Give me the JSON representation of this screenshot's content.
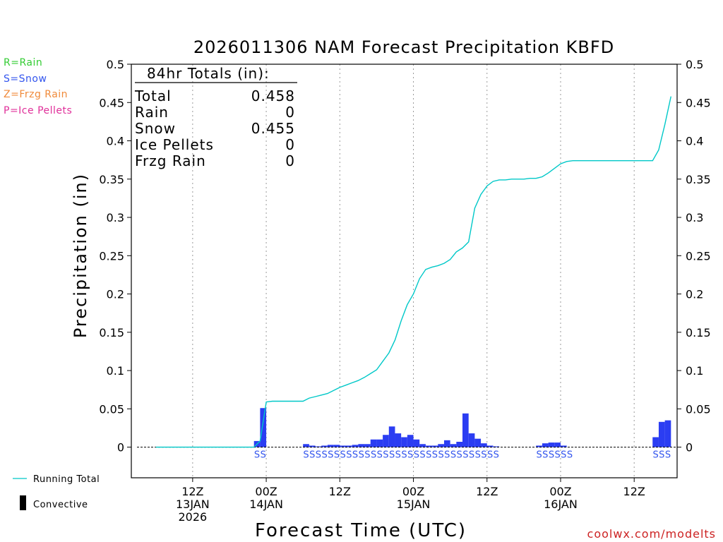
{
  "chart_data": {
    "type": "bar",
    "title": "2026011306 NAM Forecast Precipitation KBFD",
    "ylabel": "Precipitation (in)",
    "xlabel": "Forecast Time (UTC)",
    "ylim": [
      -0.04,
      0.5
    ],
    "yticks": [
      0,
      0.05,
      0.1,
      0.15,
      0.2,
      0.25,
      0.3,
      0.35,
      0.4,
      0.45,
      0.5
    ],
    "ytick_labels": [
      "0",
      "0.05",
      "0.1",
      "0.15",
      "0.2",
      "0.25",
      "0.3",
      "0.35",
      "0.4",
      "0.45",
      "0.5"
    ],
    "xlim_hours": [
      -4,
      85
    ],
    "xticks": [
      {
        "hour": 6,
        "label1": "12Z",
        "label2": "13JAN",
        "label3": "2026"
      },
      {
        "hour": 18,
        "label1": "00Z",
        "label2": "14JAN",
        "label3": ""
      },
      {
        "hour": 30,
        "label1": "12Z",
        "label2": "",
        "label3": ""
      },
      {
        "hour": 42,
        "label1": "00Z",
        "label2": "15JAN",
        "label3": ""
      },
      {
        "hour": 54,
        "label1": "12Z",
        "label2": "",
        "label3": ""
      },
      {
        "hour": 66,
        "label1": "00Z",
        "label2": "16JAN",
        "label3": ""
      },
      {
        "hour": 78,
        "label1": "12Z",
        "label2": "",
        "label3": ""
      }
    ],
    "precip_type_legend": [
      {
        "label": "R=Rain",
        "color": "#33cc33"
      },
      {
        "label": "S=Snow",
        "color": "#3355ee"
      },
      {
        "label": "Z=Frzg Rain",
        "color": "#f08a3a"
      },
      {
        "label": "P=Ice Pellets",
        "color": "#e0309a"
      }
    ],
    "series_legend": {
      "running_total": "Running Total",
      "convective": "Convective"
    },
    "totals_box": {
      "header": "84hr Totals (in):",
      "rows": [
        {
          "name": "Total",
          "value": "0.458"
        },
        {
          "name": "Rain",
          "value": "0"
        },
        {
          "name": "Snow",
          "value": "0.455"
        },
        {
          "name": "Ice Pellets",
          "value": "0"
        },
        {
          "name": "Frzg Rain",
          "value": "0"
        }
      ]
    },
    "hourly_precip": {
      "hours": [
        17,
        18,
        25,
        26,
        27,
        28,
        29,
        30,
        31,
        32,
        33,
        34,
        35,
        36,
        37,
        38,
        39,
        40,
        41,
        42,
        43,
        44,
        45,
        46,
        47,
        48,
        49,
        50,
        51,
        52,
        53,
        54,
        55,
        56,
        63,
        64,
        65,
        66,
        67,
        82,
        83,
        84
      ],
      "values": [
        0.008,
        0.051,
        0.004,
        0.002,
        0.001,
        0.002,
        0.003,
        0.003,
        0.002,
        0.002,
        0.003,
        0.004,
        0.004,
        0.01,
        0.01,
        0.016,
        0.027,
        0.018,
        0.013,
        0.016,
        0.01,
        0.004,
        0.002,
        0.002,
        0.004,
        0.009,
        0.004,
        0.007,
        0.044,
        0.018,
        0.011,
        0.005,
        0.002,
        0.001,
        0.002,
        0.005,
        0.006,
        0.006,
        0.002,
        0.013,
        0.033,
        0.035
      ],
      "color": "#2b3df2"
    },
    "running_total": {
      "hours": [
        0,
        16,
        17,
        18,
        19,
        20,
        21,
        22,
        23,
        24,
        25,
        26,
        27,
        28,
        29,
        30,
        31,
        32,
        33,
        34,
        35,
        36,
        37,
        38,
        39,
        40,
        41,
        42,
        43,
        44,
        45,
        46,
        47,
        48,
        49,
        50,
        51,
        52,
        53,
        54,
        55,
        56,
        57,
        58,
        59,
        60,
        61,
        62,
        63,
        64,
        65,
        66,
        67,
        68,
        69,
        70,
        71,
        72,
        73,
        74,
        75,
        76,
        77,
        78,
        79,
        80,
        81,
        82,
        83,
        84
      ],
      "values": [
        0,
        0,
        0.008,
        0.059,
        0.06,
        0.06,
        0.06,
        0.06,
        0.06,
        0.06,
        0.064,
        0.066,
        0.068,
        0.07,
        0.074,
        0.078,
        0.081,
        0.084,
        0.087,
        0.091,
        0.096,
        0.101,
        0.112,
        0.123,
        0.14,
        0.165,
        0.186,
        0.2,
        0.22,
        0.232,
        0.235,
        0.237,
        0.24,
        0.245,
        0.255,
        0.26,
        0.268,
        0.312,
        0.33,
        0.341,
        0.347,
        0.349,
        0.349,
        0.35,
        0.35,
        0.35,
        0.351,
        0.351,
        0.353,
        0.358,
        0.364,
        0.37,
        0.373,
        0.374,
        0.374,
        0.374,
        0.374,
        0.374,
        0.374,
        0.374,
        0.374,
        0.374,
        0.374,
        0.374,
        0.374,
        0.374,
        0.374,
        0.388,
        0.421,
        0.458
      ],
      "color": "#00c8c8"
    },
    "ptype_markers": [
      {
        "hour": 17,
        "text": "S"
      },
      {
        "hour": 18,
        "text": "S"
      },
      {
        "hour": 25,
        "text": "S"
      },
      {
        "hour": 26,
        "text": "S"
      },
      {
        "hour": 27,
        "text": "S"
      },
      {
        "hour": 28,
        "text": "S"
      },
      {
        "hour": 29,
        "text": "S"
      },
      {
        "hour": 30,
        "text": "S"
      },
      {
        "hour": 31,
        "text": "S"
      },
      {
        "hour": 32,
        "text": "S"
      },
      {
        "hour": 33,
        "text": "S"
      },
      {
        "hour": 34,
        "text": "S"
      },
      {
        "hour": 35,
        "text": "S"
      },
      {
        "hour": 36,
        "text": "S"
      },
      {
        "hour": 37,
        "text": "S"
      },
      {
        "hour": 38,
        "text": "S"
      },
      {
        "hour": 39,
        "text": "S"
      },
      {
        "hour": 40,
        "text": "S"
      },
      {
        "hour": 41,
        "text": "S"
      },
      {
        "hour": 42,
        "text": "S"
      },
      {
        "hour": 43,
        "text": "S"
      },
      {
        "hour": 44,
        "text": "S"
      },
      {
        "hour": 45,
        "text": "S"
      },
      {
        "hour": 46,
        "text": "S"
      },
      {
        "hour": 47,
        "text": "S"
      },
      {
        "hour": 48,
        "text": "S"
      },
      {
        "hour": 49,
        "text": "S"
      },
      {
        "hour": 50,
        "text": "S"
      },
      {
        "hour": 51,
        "text": "S"
      },
      {
        "hour": 52,
        "text": "S"
      },
      {
        "hour": 53,
        "text": "S"
      },
      {
        "hour": 54,
        "text": "S"
      },
      {
        "hour": 55,
        "text": "S"
      },
      {
        "hour": 56,
        "text": "S"
      },
      {
        "hour": 63,
        "text": "S"
      },
      {
        "hour": 64,
        "text": "S"
      },
      {
        "hour": 65,
        "text": "S"
      },
      {
        "hour": 66,
        "text": "S"
      },
      {
        "hour": 67,
        "text": "S"
      },
      {
        "hour": 68,
        "text": "S"
      },
      {
        "hour": 82,
        "text": "S"
      },
      {
        "hour": 83,
        "text": "S"
      },
      {
        "hour": 84,
        "text": "S"
      }
    ],
    "watermark": "coolwx.com/modelts",
    "watermark_color": "#cc2222"
  }
}
